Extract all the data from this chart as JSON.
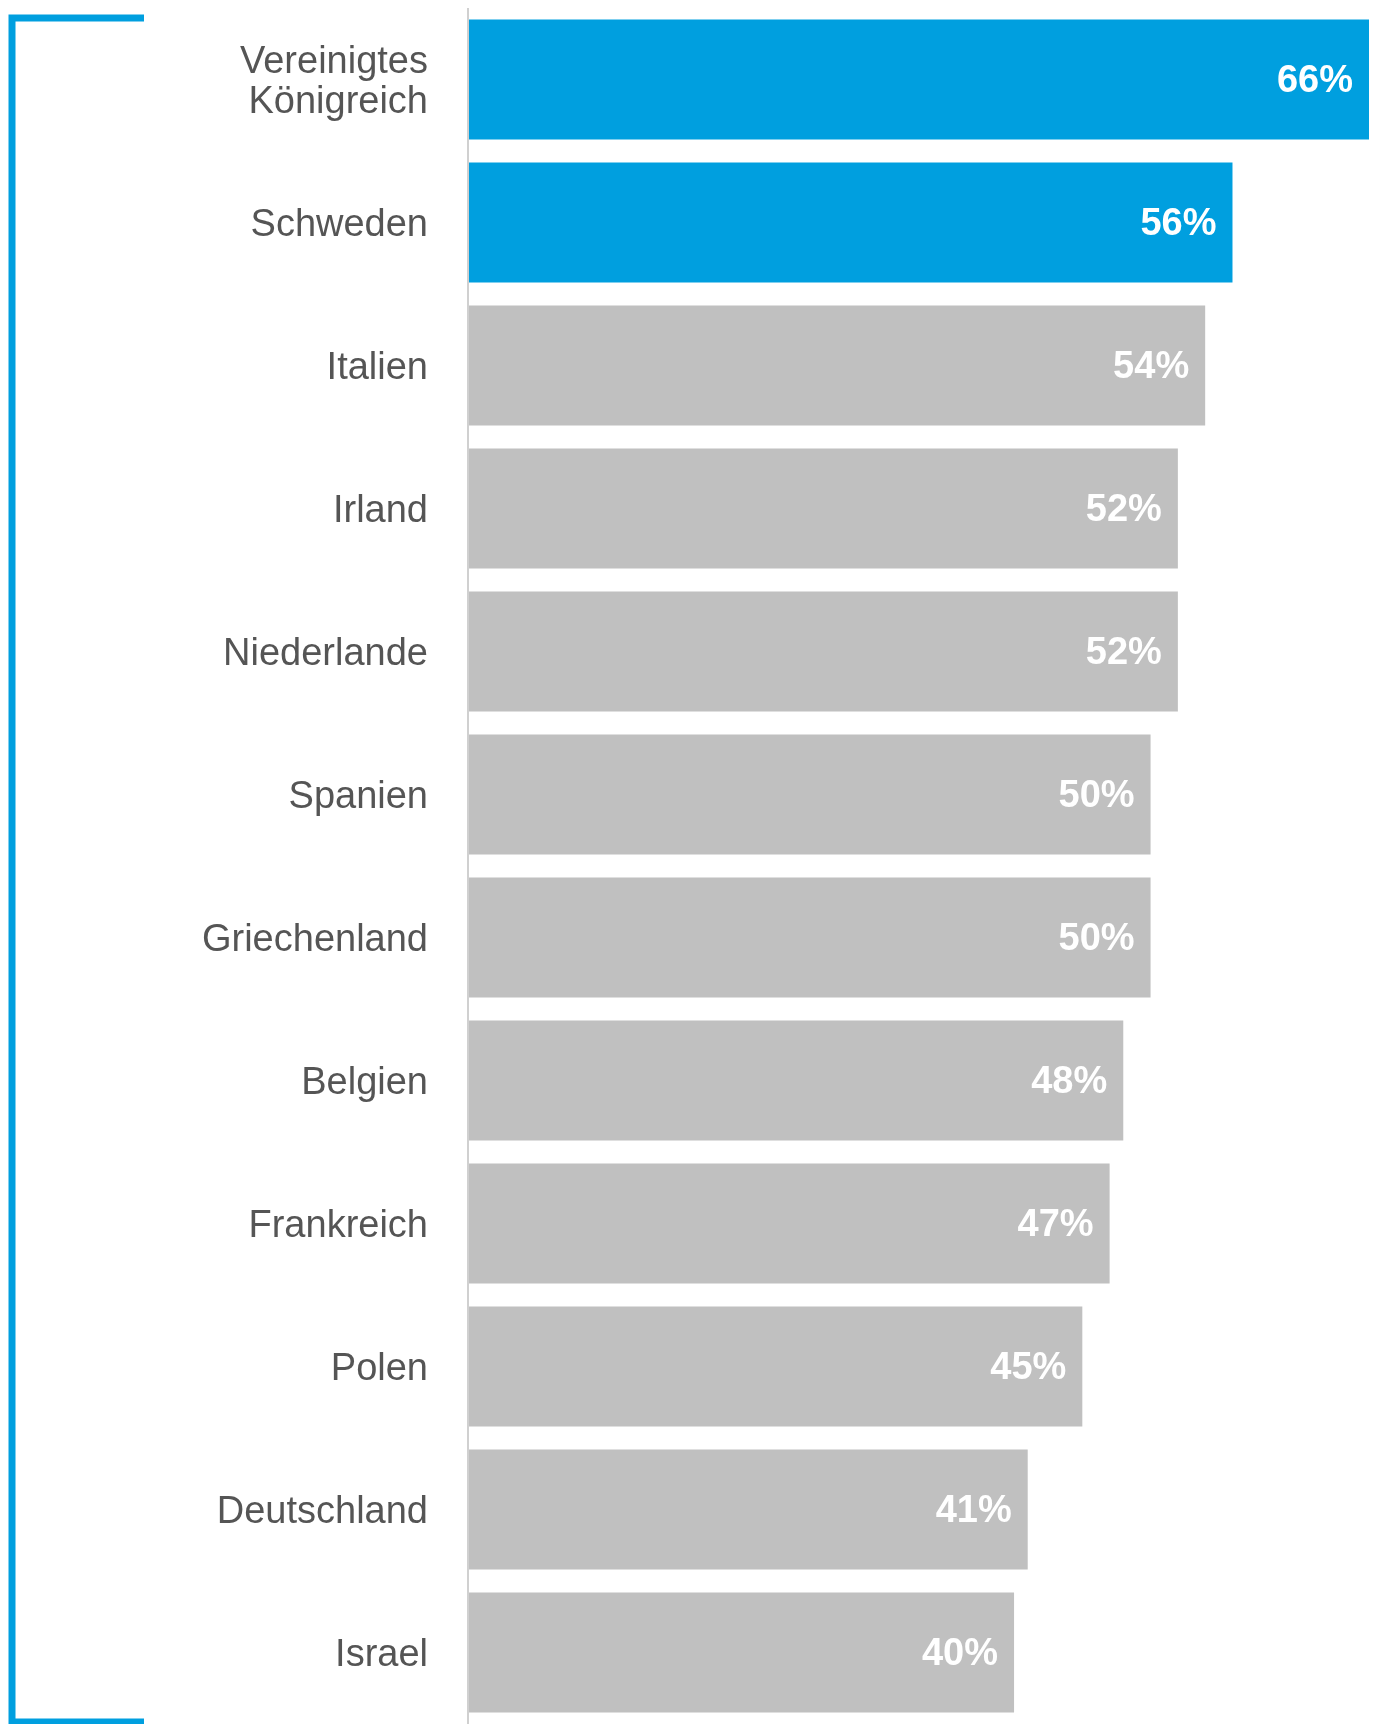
{
  "chart_data": {
    "type": "bar",
    "orientation": "horizontal",
    "categories": [
      "Vereinigtes Königreich",
      "Schweden",
      "Italien",
      "Irland",
      "Niederlande",
      "Spanien",
      "Griechenland",
      "Belgien",
      "Frankreich",
      "Polen",
      "Deutschland",
      "Israel"
    ],
    "values": [
      66,
      56,
      54,
      52,
      52,
      50,
      50,
      48,
      47,
      45,
      41,
      40
    ],
    "value_labels": [
      "66%",
      "56%",
      "54%",
      "52%",
      "52%",
      "50%",
      "50%",
      "48%",
      "47%",
      "45%",
      "41%",
      "40%"
    ],
    "colors": [
      "#009fdf",
      "#009fdf",
      "#c0c0c0",
      "#c0c0c0",
      "#c0c0c0",
      "#c0c0c0",
      "#c0c0c0",
      "#c0c0c0",
      "#c0c0c0",
      "#c0c0c0",
      "#c0c0c0",
      "#c0c0c0"
    ],
    "grid": false
  }
}
